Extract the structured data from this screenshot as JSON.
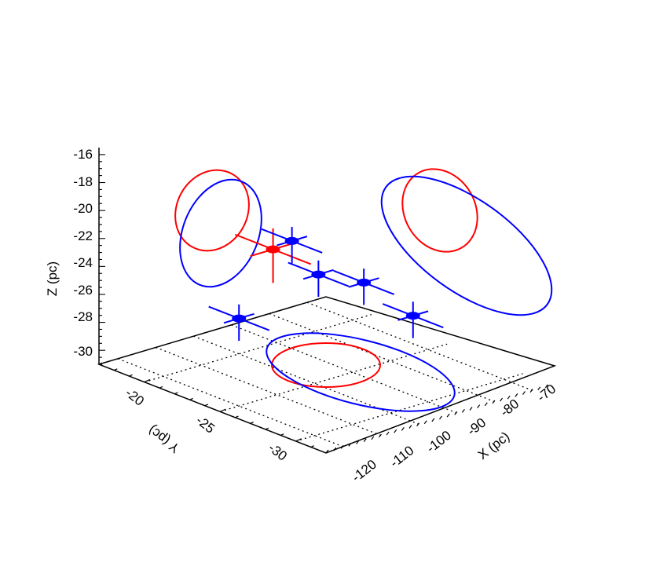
{
  "chart_data": {
    "type": "scatter",
    "projection": "3d",
    "axes": {
      "x": {
        "label": "X (pc)",
        "ticks": [
          -120,
          -110,
          -100,
          -90,
          -80,
          -70
        ],
        "range": [
          -125,
          -65
        ]
      },
      "y": {
        "label": "Y (pc)",
        "ticks": [
          -20,
          -25,
          -30
        ],
        "range": [
          -17,
          -32
        ]
      },
      "z": {
        "label": "Z (pc)",
        "ticks": [
          -16,
          -18,
          -20,
          -22,
          -24,
          -26,
          -28,
          -30
        ],
        "range": [
          -31,
          -15.5
        ]
      }
    },
    "grid": "dotted on X–Y floor",
    "series": [
      {
        "color": "#ff0000",
        "points": [
          {
            "x": -95,
            "y": -21,
            "z": -23.5
          }
        ]
      },
      {
        "color": "#0000ff",
        "points": [
          {
            "x": -90,
            "y": -21,
            "z": -23.3
          },
          {
            "x": -93,
            "y": -23.5,
            "z": -24.4
          },
          {
            "x": -85,
            "y": -24.5,
            "z": -25.2
          },
          {
            "x": -78,
            "y": -26,
            "z": -27.5
          },
          {
            "x": -110,
            "y": -22.5,
            "z": -26.6
          }
        ]
      }
    ]
  }
}
